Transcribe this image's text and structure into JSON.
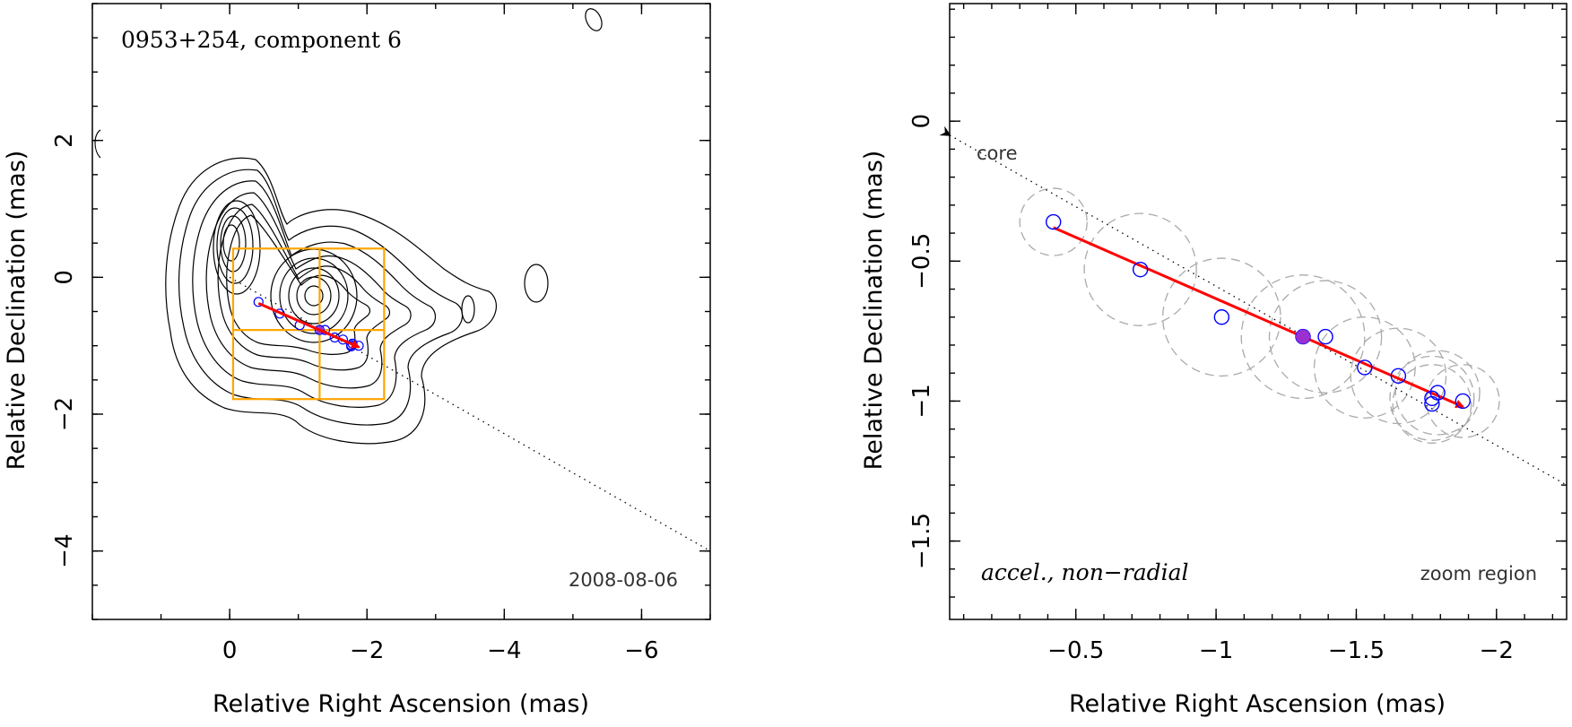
{
  "chart_data": [
    {
      "type": "contour",
      "title": "0953+254, component 6",
      "date": "2008-08-06",
      "xlabel": "Relative Right Ascension (mas)",
      "ylabel": "Relative Declination (mas)",
      "xlim": [
        2,
        -7
      ],
      "ylim": [
        -5,
        4
      ],
      "xticks": [
        0,
        -2,
        -4,
        -6
      ],
      "yticks": [
        2,
        0,
        -2,
        -4
      ],
      "xtick_labels": [
        "0",
        "−2",
        "−4",
        "−6"
      ],
      "ytick_labels": [
        "2",
        "0",
        "−2",
        "−4"
      ],
      "contour_peaks": [
        {
          "x": 0.1,
          "y": 0.1
        },
        {
          "x": -1.5,
          "y": -0.8
        }
      ],
      "trajectory_points": [
        {
          "x": -0.42,
          "y": -0.36
        },
        {
          "x": -0.73,
          "y": -0.53
        },
        {
          "x": -1.02,
          "y": -0.7
        },
        {
          "x": -1.31,
          "y": -0.77
        },
        {
          "x": -1.39,
          "y": -0.77
        },
        {
          "x": -1.53,
          "y": -0.88
        },
        {
          "x": -1.65,
          "y": -0.91
        },
        {
          "x": -1.77,
          "y": -0.99
        },
        {
          "x": -1.77,
          "y": -1.01
        },
        {
          "x": -1.79,
          "y": -0.97
        },
        {
          "x": -1.88,
          "y": -1.0
        }
      ],
      "reference_epoch_point": {
        "x": -1.31,
        "y": -0.77
      },
      "velocity_vector": {
        "x0": -0.42,
        "y0": -0.38,
        "x1": -1.88,
        "y1": -1.02
      },
      "zoom_box": {
        "x": [
          -2.25,
          -0.05
        ],
        "y": [
          -1.78,
          0.42
        ]
      },
      "colors": {
        "vector": "#ff0000",
        "points": "#0000ff",
        "reference": "#9b30d0",
        "zoom_box": "#ffa500",
        "contours": "#000000"
      }
    },
    {
      "type": "scatter",
      "annotation": "accel., non−radial",
      "zoom_label": "zoom region",
      "core_label": "core",
      "xlabel": "Relative Right Ascension (mas)",
      "ylabel": "Relative Declination (mas)",
      "xlim": [
        -0.05,
        -2.25
      ],
      "ylim": [
        -1.78,
        0.42
      ],
      "xticks": [
        -0.5,
        -1,
        -1.5,
        -2
      ],
      "yticks": [
        0,
        -0.5,
        -1,
        -1.5
      ],
      "xtick_labels": [
        "−0.5",
        "−1",
        "−1.5",
        "−2"
      ],
      "ytick_labels": [
        "0",
        "−0.5",
        "−1",
        "−1.5"
      ],
      "points": [
        {
          "x": -0.42,
          "y": -0.36,
          "r": 0.12
        },
        {
          "x": -0.73,
          "y": -0.53,
          "r": 0.2
        },
        {
          "x": -1.02,
          "y": -0.7,
          "r": 0.21
        },
        {
          "x": -1.31,
          "y": -0.77,
          "r": 0.22
        },
        {
          "x": -1.39,
          "y": -0.77,
          "r": 0.2
        },
        {
          "x": -1.53,
          "y": -0.88,
          "r": 0.18
        },
        {
          "x": -1.65,
          "y": -0.91,
          "r": 0.17
        },
        {
          "x": -1.77,
          "y": -0.99,
          "r": 0.15
        },
        {
          "x": -1.77,
          "y": -1.01,
          "r": 0.14
        },
        {
          "x": -1.79,
          "y": -0.97,
          "r": 0.15
        },
        {
          "x": -1.88,
          "y": -1.0,
          "r": 0.13
        }
      ],
      "reference_epoch_point": {
        "x": -1.31,
        "y": -0.77
      },
      "velocity_vector": {
        "x0": -0.42,
        "y0": -0.38,
        "x1": -1.88,
        "y1": -1.02
      },
      "core_direction_line": {
        "x0": -0.05,
        "y0": -0.05,
        "x1": -2.25,
        "y1": -1.3
      }
    }
  ]
}
